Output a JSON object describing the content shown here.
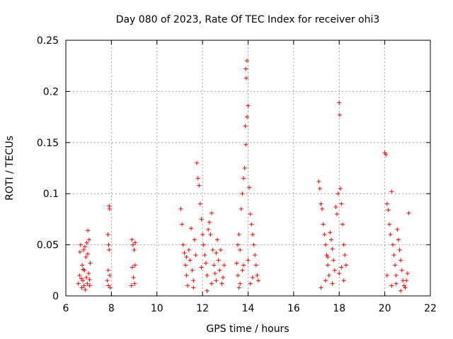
{
  "chart_data": {
    "type": "scatter",
    "title": "Day 080 of 2023, Rate Of TEC Index for receiver ohi3",
    "xlabel": "GPS time / hours",
    "ylabel": "ROTI / TECUs",
    "xlim": [
      6,
      22
    ],
    "ylim": [
      0,
      0.25
    ],
    "xticks": [
      6,
      8,
      10,
      12,
      14,
      16,
      18,
      20,
      22
    ],
    "yticks": [
      0,
      0.05,
      0.1,
      0.15,
      0.2,
      0.25
    ],
    "xtick_labels": [
      "6",
      "8",
      "10",
      "12",
      "14",
      "16",
      "18",
      "20",
      "22"
    ],
    "ytick_labels": [
      "0",
      "0.05",
      "0.1",
      "0.15",
      "0.2",
      "0.25"
    ],
    "grid": true,
    "marker": "plus",
    "color": "#ff0000",
    "series": [
      {
        "points": [
          [
            6.55,
            0.012
          ],
          [
            6.6,
            0.02
          ],
          [
            6.62,
            0.043
          ],
          [
            6.65,
            0.05
          ],
          [
            6.7,
            0.008
          ],
          [
            6.72,
            0.03
          ],
          [
            6.75,
            0.015
          ],
          [
            6.78,
            0.045
          ],
          [
            6.8,
            0.01
          ],
          [
            6.82,
            0.025
          ],
          [
            6.85,
            0.006
          ],
          [
            6.88,
            0.038
          ],
          [
            6.9,
            0.018
          ],
          [
            6.92,
            0.052
          ],
          [
            6.95,
            0.012
          ],
          [
            6.97,
            0.064
          ],
          [
            7.0,
            0.022
          ],
          [
            7.02,
            0.055
          ],
          [
            7.05,
            0.01
          ],
          [
            7.07,
            0.032
          ],
          [
            6.68,
            0.017
          ],
          [
            6.76,
            0.026
          ],
          [
            6.84,
            0.048
          ],
          [
            6.96,
            0.041
          ],
          [
            7.04,
            0.016
          ],
          [
            7.9,
            0.088
          ],
          [
            7.92,
            0.085
          ],
          [
            7.85,
            0.06
          ],
          [
            7.88,
            0.05
          ],
          [
            7.9,
            0.045
          ],
          [
            7.82,
            0.015
          ],
          [
            7.87,
            0.01
          ],
          [
            7.93,
            0.02
          ],
          [
            7.95,
            0.008
          ],
          [
            7.86,
            0.025
          ],
          [
            8.9,
            0.055
          ],
          [
            8.95,
            0.05
          ],
          [
            9.0,
            0.045
          ],
          [
            8.92,
            0.028
          ],
          [
            8.97,
            0.018
          ],
          [
            9.02,
            0.012
          ],
          [
            9.05,
            0.052
          ],
          [
            8.88,
            0.01
          ],
          [
            9.04,
            0.03
          ],
          [
            11.05,
            0.085
          ],
          [
            11.1,
            0.07
          ],
          [
            11.15,
            0.05
          ],
          [
            11.2,
            0.042
          ],
          [
            11.25,
            0.03
          ],
          [
            11.3,
            0.02
          ],
          [
            11.35,
            0.01
          ],
          [
            11.4,
            0.045
          ],
          [
            11.45,
            0.035
          ],
          [
            11.5,
            0.066
          ],
          [
            11.55,
            0.025
          ],
          [
            11.6,
            0.015
          ],
          [
            11.65,
            0.055
          ],
          [
            11.7,
            0.04
          ],
          [
            11.75,
            0.13
          ],
          [
            11.8,
            0.115
          ],
          [
            11.85,
            0.108
          ],
          [
            11.9,
            0.09
          ],
          [
            11.95,
            0.075
          ],
          [
            12.0,
            0.06
          ],
          [
            12.05,
            0.05
          ],
          [
            12.1,
            0.04
          ],
          [
            12.15,
            0.032
          ],
          [
            12.2,
            0.02
          ],
          [
            12.25,
            0.065
          ],
          [
            12.3,
            0.072
          ],
          [
            12.35,
            0.06
          ],
          [
            12.4,
            0.081
          ],
          [
            12.45,
            0.045
          ],
          [
            12.5,
            0.03
          ],
          [
            12.55,
            0.022
          ],
          [
            12.6,
            0.015
          ],
          [
            12.65,
            0.055
          ],
          [
            12.7,
            0.035
          ],
          [
            12.75,
            0.025
          ],
          [
            12.8,
            0.045
          ],
          [
            12.85,
            0.012
          ],
          [
            12.9,
            0.018
          ],
          [
            12.95,
            0.03
          ],
          [
            11.6,
            0.008
          ],
          [
            12.2,
            0.005
          ],
          [
            11.3,
            0.038
          ],
          [
            12.6,
            0.042
          ],
          [
            11.95,
            0.028
          ],
          [
            12.4,
            0.012
          ],
          [
            13.5,
            0.032
          ],
          [
            13.55,
            0.05
          ],
          [
            13.6,
            0.06
          ],
          [
            13.65,
            0.045
          ],
          [
            13.7,
            0.085
          ],
          [
            13.75,
            0.1
          ],
          [
            13.8,
            0.115
          ],
          [
            13.85,
            0.125
          ],
          [
            13.9,
            0.148
          ],
          [
            13.95,
            0.175
          ],
          [
            13.88,
            0.166
          ],
          [
            13.92,
            0.213
          ],
          [
            13.95,
            0.23
          ],
          [
            13.9,
            0.222
          ],
          [
            14.0,
            0.186
          ],
          [
            14.05,
            0.106
          ],
          [
            14.1,
            0.08
          ],
          [
            14.15,
            0.07
          ],
          [
            14.2,
            0.06
          ],
          [
            14.25,
            0.05
          ],
          [
            14.3,
            0.04
          ],
          [
            14.35,
            0.03
          ],
          [
            14.4,
            0.02
          ],
          [
            14.45,
            0.015
          ],
          [
            13.55,
            0.02
          ],
          [
            13.65,
            0.012
          ],
          [
            13.75,
            0.025
          ],
          [
            14.0,
            0.035
          ],
          [
            14.2,
            0.018
          ],
          [
            13.6,
            0.008
          ],
          [
            14.1,
            0.012
          ],
          [
            13.8,
            0.03
          ],
          [
            17.1,
            0.112
          ],
          [
            17.15,
            0.105
          ],
          [
            17.2,
            0.09
          ],
          [
            17.25,
            0.085
          ],
          [
            17.3,
            0.07
          ],
          [
            17.35,
            0.06
          ],
          [
            17.4,
            0.05
          ],
          [
            17.45,
            0.04
          ],
          [
            17.5,
            0.03
          ],
          [
            17.55,
            0.02
          ],
          [
            17.6,
            0.062
          ],
          [
            17.65,
            0.055
          ],
          [
            17.7,
            0.046
          ],
          [
            17.75,
            0.035
          ],
          [
            17.8,
            0.025
          ],
          [
            17.85,
            0.087
          ],
          [
            17.9,
            0.08
          ],
          [
            17.95,
            0.1
          ],
          [
            18.0,
            0.189
          ],
          [
            18.02,
            0.177
          ],
          [
            18.05,
            0.105
          ],
          [
            18.1,
            0.09
          ],
          [
            18.15,
            0.07
          ],
          [
            18.2,
            0.05
          ],
          [
            18.25,
            0.04
          ],
          [
            18.3,
            0.03
          ],
          [
            17.2,
            0.008
          ],
          [
            17.4,
            0.015
          ],
          [
            17.7,
            0.012
          ],
          [
            18.0,
            0.022
          ],
          [
            18.2,
            0.015
          ],
          [
            17.5,
            0.038
          ],
          [
            18.1,
            0.028
          ],
          [
            20.0,
            0.14
          ],
          [
            20.05,
            0.138
          ],
          [
            20.1,
            0.09
          ],
          [
            20.15,
            0.084
          ],
          [
            20.2,
            0.07
          ],
          [
            20.25,
            0.06
          ],
          [
            20.3,
            0.102
          ],
          [
            20.35,
            0.05
          ],
          [
            20.4,
            0.04
          ],
          [
            20.45,
            0.03
          ],
          [
            20.5,
            0.02
          ],
          [
            20.55,
            0.065
          ],
          [
            20.6,
            0.055
          ],
          [
            20.65,
            0.045
          ],
          [
            20.7,
            0.035
          ],
          [
            20.75,
            0.025
          ],
          [
            20.8,
            0.015
          ],
          [
            20.85,
            0.01
          ],
          [
            20.9,
            0.008
          ],
          [
            21.05,
            0.081
          ],
          [
            21.0,
            0.022
          ],
          [
            20.95,
            0.015
          ],
          [
            20.1,
            0.02
          ],
          [
            20.3,
            0.01
          ],
          [
            20.5,
            0.012
          ],
          [
            20.7,
            0.005
          ]
        ]
      }
    ]
  }
}
